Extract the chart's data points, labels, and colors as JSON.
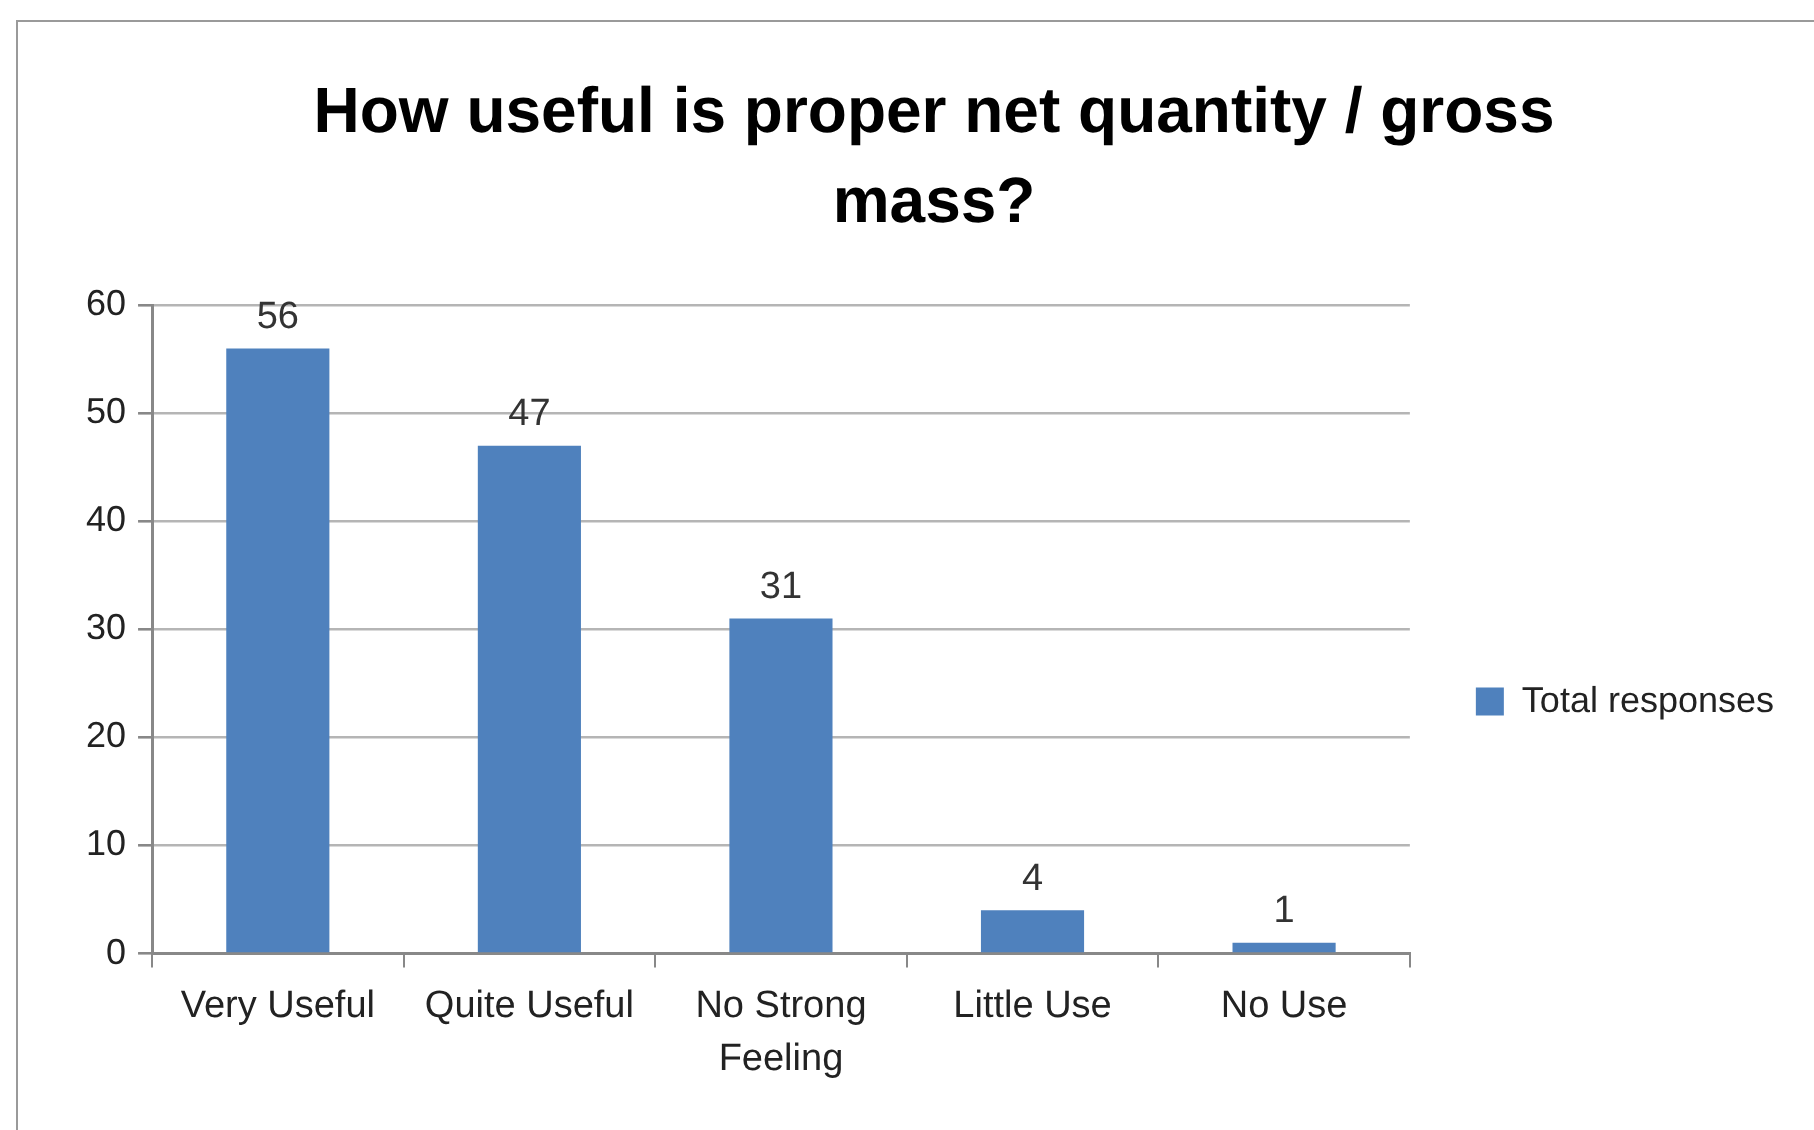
{
  "chart_data": {
    "type": "bar",
    "title": "How useful is proper net quantity / gross mass?",
    "categories": [
      "Very Useful",
      "Quite Useful",
      "No Strong Feeling",
      "Little Use",
      "No Use"
    ],
    "series": [
      {
        "name": "Total responses",
        "color": "#4f81bd",
        "values": [
          56,
          47,
          31,
          4,
          1
        ]
      }
    ],
    "ylim": [
      0,
      60
    ],
    "yticks": [
      0,
      10,
      20,
      30,
      40,
      50,
      60
    ],
    "grid": "y",
    "legend": "right",
    "data_labels": true
  }
}
